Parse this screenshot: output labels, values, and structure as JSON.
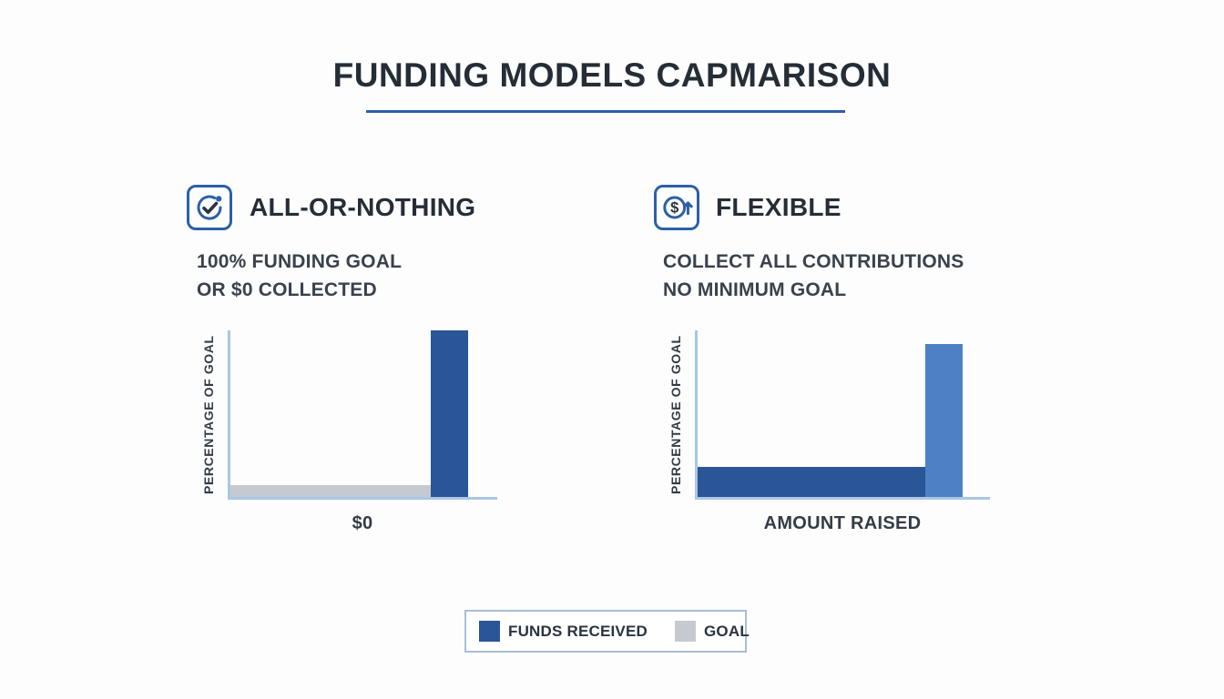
{
  "title": "FUNDING MODELS CAPMARISON",
  "panels": {
    "left": {
      "heading": "ALL-OR-NOTHING",
      "desc1": "100% FUNDING GOAL",
      "desc2": "OR $0 COLLECTED",
      "ylabel": "PERCENTAGE OF GOAL",
      "xlabel": "$0",
      "icon": "check-circle-icon"
    },
    "right": {
      "heading": "FLEXIBLE",
      "desc1": "COLLECT ALL CONTRIBUTIONS",
      "desc2": "NO MINIMUM GOAL",
      "ylabel": "PERCENTAGE OF GOAL",
      "xlabel": "AMOUNT RAISED",
      "icon": "dollar-up-arrow-icon"
    }
  },
  "legend": {
    "items": [
      {
        "label": "FUNDS RECEIVED",
        "color": "#2a5597"
      },
      {
        "label": "GOAL",
        "color": "#c5cad0"
      }
    ]
  },
  "colors": {
    "accent_blue": "#2d5fa8",
    "axis_blue": "#a9c7e6",
    "funds_dark_blue": "#2a5597",
    "funds_light_blue": "#4d80c4",
    "goal_gray": "#c5cad0",
    "heading_text": "#252d37"
  },
  "chart_data": [
    {
      "type": "bar",
      "panel": "ALL-OR-NOTHING",
      "ylabel": "PERCENTAGE OF GOAL",
      "xlabel": "$0",
      "ylim": [
        0,
        100
      ],
      "bars": [
        {
          "series": "GOAL",
          "orientation": "horizontal",
          "length_pct": 75,
          "thickness_pct": 7,
          "position_pct": 0,
          "color": "#c5cad0"
        },
        {
          "series": "FUNDS RECEIVED",
          "orientation": "vertical",
          "length_pct": 100,
          "thickness_pct": 14,
          "position_pct": 75,
          "color": "#2a5597"
        }
      ]
    },
    {
      "type": "bar",
      "panel": "FLEXIBLE",
      "ylabel": "PERCENTAGE OF GOAL",
      "xlabel": "AMOUNT RAISED",
      "ylim": [
        0,
        100
      ],
      "bars": [
        {
          "series": "FUNDS RECEIVED",
          "orientation": "horizontal",
          "length_pct": 78,
          "thickness_pct": 18,
          "position_pct": 0,
          "color": "#2a5597"
        },
        {
          "series": "FUNDS RECEIVED",
          "orientation": "vertical",
          "length_pct": 92,
          "thickness_pct": 12.5,
          "position_pct": 78,
          "color": "#4d80c4"
        }
      ]
    }
  ]
}
